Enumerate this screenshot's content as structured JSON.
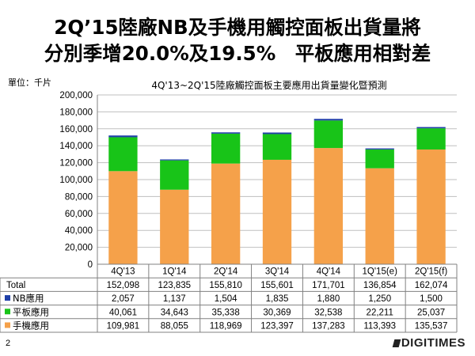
{
  "slide": {
    "title_line1": "2Q’15陸廠NB及手機用觸控面板出貨量將",
    "title_line2": "分別季增20.0%及19.5%　平板應用相對差",
    "unit_label": "單位：千片",
    "page_number": "2",
    "brand": "DIGITIMES"
  },
  "colors": {
    "nb": "#1f3fa8",
    "tablet": "#18c418",
    "phone": "#f5a14a",
    "grid": "#bfbfbf",
    "axis": "#808080"
  },
  "chart_data": {
    "type": "bar",
    "stacked": true,
    "title": "4Q'13~2Q'15陸廠觸控面板主要應用出貨量變化暨預測",
    "categories": [
      "4Q'13",
      "1Q'14",
      "2Q'14",
      "3Q'14",
      "4Q'14",
      "1Q'15(e)",
      "2Q'15(f)"
    ],
    "series": [
      {
        "name": "手機應用",
        "color_key": "phone",
        "values": [
          109981,
          88055,
          118969,
          123397,
          137283,
          113393,
          135537
        ]
      },
      {
        "name": "平板應用",
        "color_key": "tablet",
        "values": [
          40061,
          34643,
          35338,
          30369,
          32538,
          22211,
          25037
        ]
      },
      {
        "name": "NB應用",
        "color_key": "nb",
        "values": [
          2057,
          1137,
          1504,
          1835,
          1880,
          1250,
          1500
        ]
      }
    ],
    "total_label": "Total",
    "totals": [
      152098,
      123835,
      155810,
      155601,
      171701,
      136854,
      162074
    ],
    "ylim": [
      0,
      200000
    ],
    "yticks": [
      0,
      20000,
      40000,
      60000,
      80000,
      100000,
      120000,
      140000,
      160000,
      180000,
      200000
    ],
    "ytick_labels": [
      "0",
      "20,000",
      "40,000",
      "60,000",
      "80,000",
      "100,000",
      "120,000",
      "140,000",
      "160,000",
      "180,000",
      "200,000"
    ],
    "grid": true,
    "legend": "data-table"
  }
}
